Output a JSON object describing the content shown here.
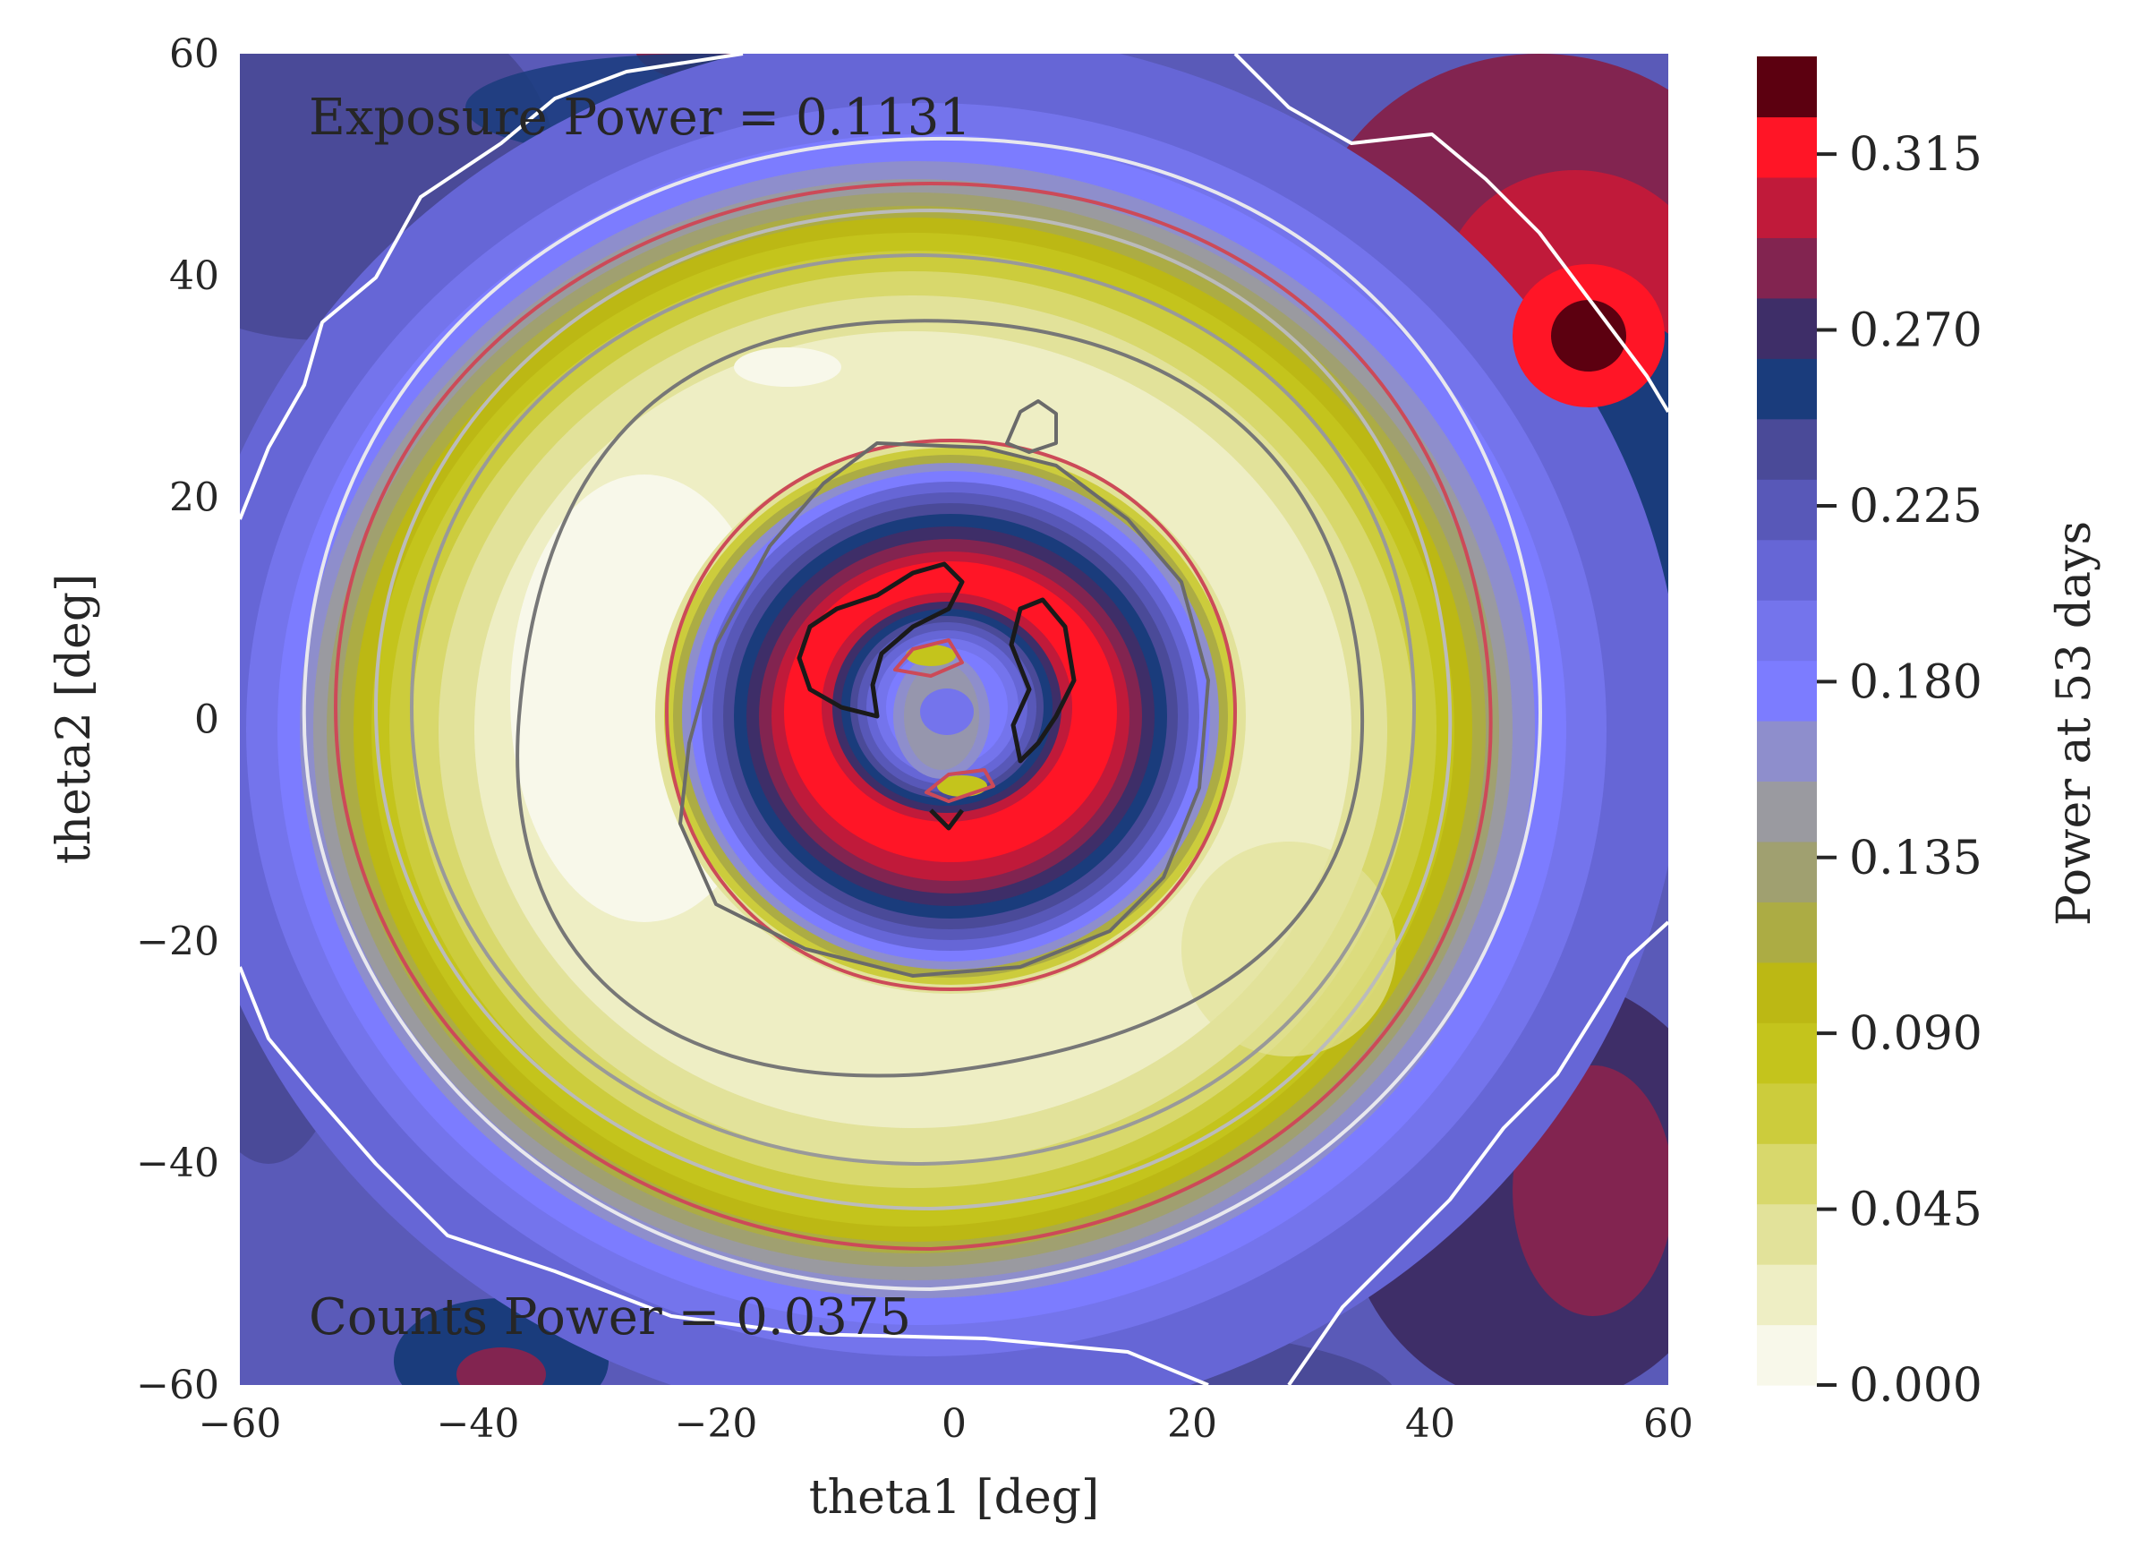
{
  "chart_data": {
    "type": "contour",
    "xlabel": "theta1 [deg]",
    "ylabel": "theta2 [deg]",
    "xlim": [
      -60,
      60
    ],
    "ylim": [
      -60,
      60
    ],
    "xticks": [
      "−60",
      "−40",
      "−20",
      "0",
      "20",
      "40",
      "60"
    ],
    "yticks": [
      "60",
      "40",
      "20",
      "0",
      "−20",
      "−40",
      "−60"
    ],
    "xtick_values": [
      -60,
      -40,
      -20,
      0,
      20,
      40,
      60
    ],
    "ytick_values": [
      60,
      40,
      20,
      0,
      -20,
      -40,
      -60
    ],
    "grid": false,
    "colorbar": {
      "label": "Power at 53 days",
      "ticks": [
        "0.315",
        "0.270",
        "0.225",
        "0.180",
        "0.135",
        "0.090",
        "0.045",
        "0.000"
      ],
      "tick_values": [
        0.315,
        0.27,
        0.225,
        0.18,
        0.135,
        0.09,
        0.045,
        0.0
      ],
      "range": [
        0.0,
        0.34
      ],
      "levels": [
        "#f8f8ea",
        "#eeeec4",
        "#e2e29a",
        "#d8d86c",
        "#cccc3c",
        "#c4c41c",
        "#bcb814",
        "#acac44",
        "#a0a070",
        "#9a9aa0",
        "#8e8ecc",
        "#7c7cff",
        "#7474ec",
        "#6666d6",
        "#5858b8",
        "#4a4a98",
        "#1a3c7c",
        "#3e2e68",
        "#822450",
        "#c01a3a",
        "#ff1526",
        "#5c0010"
      ]
    },
    "annotations": {
      "exposure": "Exposure Power = 0.1131",
      "counts": "Counts Power = 0.0375"
    },
    "series": [
      {
        "kind": "filled-contour-peak",
        "x": 0,
        "y": 0,
        "value": 0.18
      },
      {
        "kind": "filled-contour-ring",
        "x": 0,
        "y": 0,
        "radius": 15,
        "value": 0.33
      },
      {
        "kind": "filled-contour-ring",
        "x": -4,
        "y": -2,
        "radius": 37,
        "value": 0.01
      },
      {
        "kind": "filled-contour-peak",
        "x": 54,
        "y": 34,
        "value": 0.34
      }
    ]
  }
}
